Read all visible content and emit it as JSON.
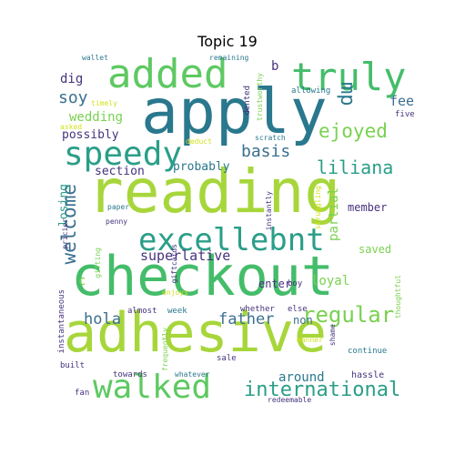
{
  "title": "Topic 19",
  "palette": {
    "lime": "#a7d63b",
    "green": "#44bd6a",
    "teal": "#2a9e88",
    "blue": "#3b6f8f",
    "navy": "#46337e",
    "yellow": "#d2e21b"
  },
  "words": {
    "apply": "apply",
    "reading": "reading",
    "checkout": "checkout",
    "adhesive": "adhesive",
    "added": "added",
    "truly": "truly",
    "speedy": "speedy",
    "excellebnt": "excellebnt",
    "walked": "walked",
    "international": "international",
    "regular": "regular",
    "welcome": "welcome",
    "ejoyed": "ejoyed",
    "liliana": "liliana",
    "basis": "basis",
    "father": "father",
    "superlative": "superlative",
    "hola": "hola",
    "wedding": "wedding",
    "soy": "soy",
    "mp": "mp",
    "dig": "dig",
    "fee": "fee",
    "possibly": "possibly",
    "probably": "probably",
    "section": "section",
    "loyal": "loyal",
    "enter": "enter",
    "saved": "saved",
    "member": "member",
    "partial": "partial",
    "losing": "losing",
    "around": "around",
    "non": "non",
    "c": "c",
    "b": "b",
    "wallet": "wallet",
    "remaining": "remaining",
    "allowing": "allowing",
    "five": "five",
    "timely": "timely",
    "asked": "asked",
    "dented": "dented",
    "deduct": "deduct",
    "scratch": "scratch",
    "trustworthy": "trustworthy",
    "instantly": "instantly",
    "struggling": "struggling",
    "paper": "paper",
    "penny": "penny",
    "pricier": "pricier",
    "gifting": "gifting",
    "giftcards": "giftcards",
    "enjoys": "enjoys",
    "almost": "almost",
    "week": "week",
    "whether": "whether",
    "else": "else",
    "boy": "boy",
    "thoughtful": "thoughtful",
    "instantaneous": "instantaneous",
    "frequently": "frequently",
    "manner": "manner",
    "shame": "shame",
    "continue": "continue",
    "built": "built",
    "sale": "sale",
    "towards": "towards",
    "whatever": "whatever",
    "hassle": "hassle",
    "fan": "fan",
    "redeemable": "redeemable"
  }
}
